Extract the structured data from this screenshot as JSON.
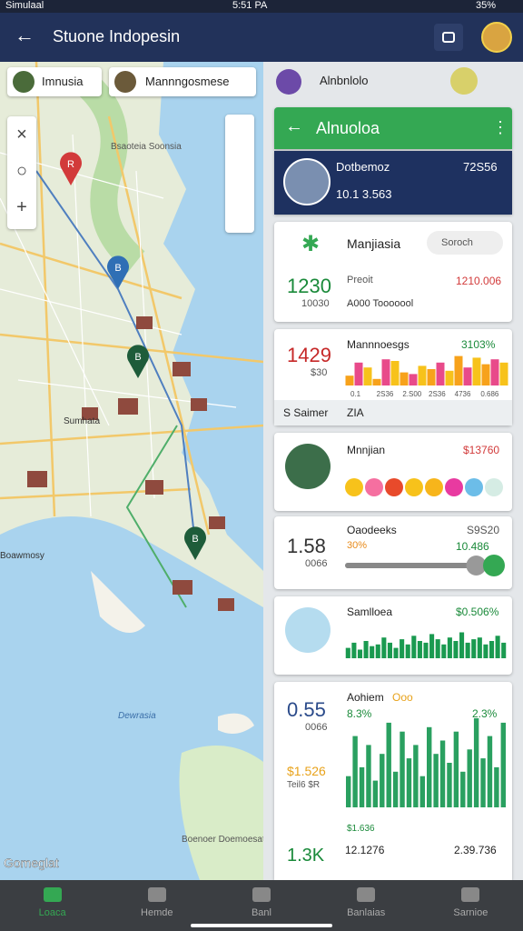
{
  "status_bar": {
    "carrier": "Simulaal",
    "time": "5:51 PA",
    "battery": "35%"
  },
  "app_bar": {
    "title": "Stuone Indopesin"
  },
  "map": {
    "chips": [
      "Imnusia",
      "Mannngosmese"
    ],
    "labels": [
      "Bsaoteia Soonsia",
      "Dewrasia",
      "Sumhata",
      "Boawmosy",
      "Boenoer Doemoesat"
    ],
    "pins": [
      "B",
      "R",
      "B",
      "B"
    ],
    "attribution": "Gomeglat"
  },
  "panel": {
    "header": "Alnbnlolo",
    "card_title": "Alnuoloa",
    "profile": {
      "name": "Dotbemoz",
      "value": "72S56",
      "sub": "10.1 3.563"
    },
    "card1": {
      "title": "Manjiasia",
      "dropdown": "Soroch",
      "big": "1230",
      "sub": "10030",
      "label": "Preoit",
      "text": "A000 Tooooool",
      "value": "1210.006"
    },
    "card2": {
      "big": "1429",
      "sub": "$30",
      "title": "Mannnoesgs",
      "value": "3103%",
      "bars": [
        30,
        70,
        55,
        20,
        80,
        75,
        40,
        35,
        60,
        50,
        70,
        45,
        90,
        55,
        85,
        65,
        80,
        70
      ],
      "bar_colors": [
        "#f7a21b",
        "#e84a8a",
        "#f7c21b"
      ],
      "xlabels": [
        "0.1",
        "2S36",
        "2.S00",
        "2S36",
        "4736",
        "0.686"
      ]
    },
    "row": {
      "left": "S Saimer",
      "right": "ZIA"
    },
    "card3": {
      "title": "Mnnjian",
      "value": "$13760",
      "dots": [
        "#f7c21b",
        "#f56fa0",
        "#e84a2b",
        "#f7c21b",
        "#f7b51b",
        "#e83aa0",
        "#6cbde8",
        "#d5ece4"
      ]
    },
    "card4": {
      "big": "1.58",
      "sub": "0066",
      "title": "Oaodeeks",
      "pct": "30%",
      "value": "S9S20",
      "value2": "10.486",
      "progress": 85
    },
    "card5": {
      "title": "Samlloea",
      "value": "$0.506%",
      "bars": [
        30,
        45,
        25,
        50,
        35,
        40,
        60,
        45,
        30,
        55,
        40,
        65,
        50,
        45,
        70,
        55,
        40,
        60,
        50,
        75,
        45,
        55,
        60,
        40,
        50,
        65,
        45
      ]
    },
    "card6": {
      "big": "0.55",
      "sub": "0066",
      "title": "Aohiem",
      "badge": "Ooo",
      "pct": "8.3%",
      "pct2": "2.3%",
      "left": "$1.526",
      "left_sub": "Teil6 $R",
      "bottom_left": "1.3K",
      "bottom_mid": "12.1276",
      "bottom_right": "2.39.736",
      "x_note": "$1.636",
      "bars": [
        35,
        80,
        45,
        70,
        30,
        60,
        95,
        40,
        85,
        55,
        70,
        35,
        90,
        60,
        75,
        50,
        85,
        40,
        65,
        100,
        55,
        80,
        45,
        95
      ]
    }
  },
  "nav": [
    "Loaca",
    "Hemde",
    "Banl",
    "Banlaias",
    "Sarnioe"
  ]
}
